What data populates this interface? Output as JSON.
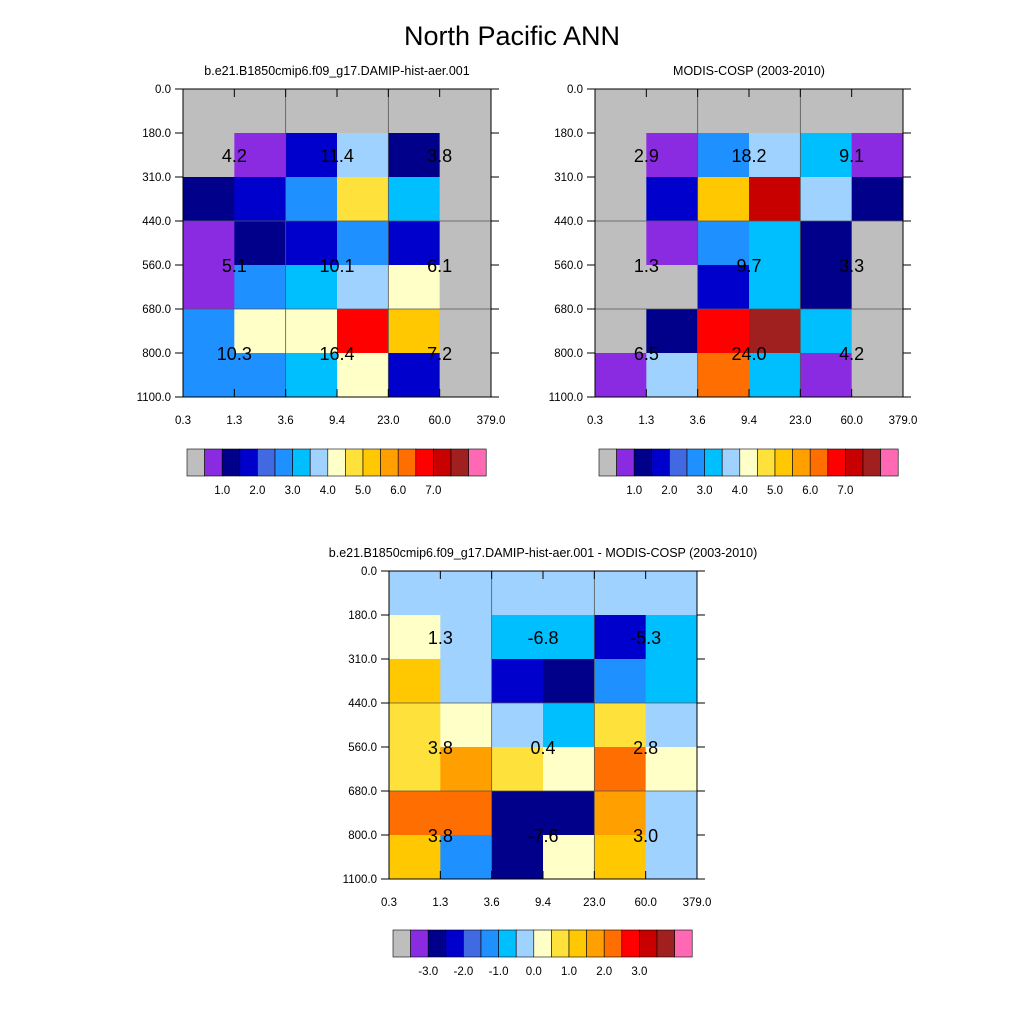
{
  "title": "North Pacific ANN",
  "chart_data": [
    {
      "type": "heatmap",
      "title": "b.e21.B1850cmip6.f09_g17.DAMIP-hist-aer.001",
      "x_ticks": [
        "0.3",
        "1.3",
        "3.6",
        "9.4",
        "23.0",
        "60.0",
        "379.0"
      ],
      "y_ticks": [
        "0.0",
        "180.0",
        "310.0",
        "440.0",
        "560.0",
        "680.0",
        "800.0",
        "1100.0"
      ],
      "cells": [
        [
          -1,
          -1,
          -1,
          -1,
          -1,
          -1,
          -1
        ],
        [
          -1,
          0.5,
          1.5,
          3.5,
          1.0,
          -1,
          -1
        ],
        [
          1.0,
          1.5,
          2.5,
          4.5,
          3.0,
          -1,
          -1
        ],
        [
          0.5,
          1.0,
          1.5,
          2.5,
          1.5,
          -1,
          -1
        ],
        [
          0.5,
          2.5,
          3.0,
          3.5,
          4.0,
          -1,
          -1
        ],
        [
          2.5,
          4.0,
          4.0,
          6.5,
          5.0,
          -1,
          -1
        ],
        [
          2.5,
          2.5,
          3.0,
          4.0,
          1.5,
          -1,
          -1
        ]
      ],
      "annotations": [
        {
          "text": "4.2",
          "x": 1,
          "y": 1.5
        },
        {
          "text": "11.4",
          "x": 3,
          "y": 1.5
        },
        {
          "text": "3.8",
          "x": 5,
          "y": 1.5
        },
        {
          "text": "5.1",
          "x": 1,
          "y": 4
        },
        {
          "text": "10.1",
          "x": 3,
          "y": 4
        },
        {
          "text": "6.1",
          "x": 5,
          "y": 4
        },
        {
          "text": "10.3",
          "x": 1,
          "y": 6
        },
        {
          "text": "16.4",
          "x": 3,
          "y": 6
        },
        {
          "text": "7.2",
          "x": 5,
          "y": 6
        }
      ],
      "colorbar": {
        "labels": [
          "1.0",
          "2.0",
          "3.0",
          "4.0",
          "5.0",
          "6.0",
          "7.0"
        ]
      }
    },
    {
      "type": "heatmap",
      "title": "MODIS-COSP (2003-2010)",
      "x_ticks": [
        "0.3",
        "1.3",
        "3.6",
        "9.4",
        "23.0",
        "60.0",
        "379.0"
      ],
      "y_ticks": [
        "0.0",
        "180.0",
        "310.0",
        "440.0",
        "560.0",
        "680.0",
        "800.0",
        "1100.0"
      ],
      "cells": [
        [
          -1,
          -1,
          -1,
          -1,
          -1,
          -1,
          -1
        ],
        [
          -1,
          0.5,
          2.5,
          3.5,
          3.0,
          0.5,
          -1
        ],
        [
          -1,
          1.5,
          5.0,
          7.0,
          3.5,
          1.0,
          -1
        ],
        [
          -1,
          0.5,
          2.5,
          3.0,
          1.0,
          -1,
          -1
        ],
        [
          -1,
          -1,
          1.5,
          3.0,
          1.0,
          -1,
          -1
        ],
        [
          -1,
          1.0,
          6.5,
          8.0,
          3.0,
          -1,
          -1
        ],
        [
          0.5,
          3.5,
          6.0,
          3.0,
          0.5,
          -1,
          -1
        ]
      ],
      "annotations": [
        {
          "text": "2.9",
          "x": 1,
          "y": 1.5
        },
        {
          "text": "18.2",
          "x": 3,
          "y": 1.5
        },
        {
          "text": "9.1",
          "x": 5,
          "y": 1.5
        },
        {
          "text": "1.3",
          "x": 1,
          "y": 4
        },
        {
          "text": "9.7",
          "x": 3,
          "y": 4
        },
        {
          "text": "3.3",
          "x": 5,
          "y": 4
        },
        {
          "text": "6.5",
          "x": 1,
          "y": 6
        },
        {
          "text": "24.0",
          "x": 3,
          "y": 6
        },
        {
          "text": "4.2",
          "x": 5,
          "y": 6
        }
      ],
      "colorbar": {
        "labels": [
          "1.0",
          "2.0",
          "3.0",
          "4.0",
          "5.0",
          "6.0",
          "7.0"
        ]
      }
    },
    {
      "type": "heatmap",
      "title": "b.e21.B1850cmip6.f09_g17.DAMIP-hist-aer.001 - MODIS-COSP (2003-2010)",
      "x_ticks": [
        "0.3",
        "1.3",
        "3.6",
        "9.4",
        "23.0",
        "60.0",
        "379.0"
      ],
      "y_ticks": [
        "0.0",
        "180.0",
        "310.0",
        "440.0",
        "560.0",
        "680.0",
        "800.0",
        "1100.0"
      ],
      "cells": [
        [
          -0.25,
          -0.25,
          -0.25,
          -0.25,
          -0.25,
          -0.25,
          -0.25
        ],
        [
          0.25,
          -0.25,
          -0.75,
          -0.75,
          -2.25,
          -0.75,
          -0.75
        ],
        [
          1.25,
          -0.25,
          -2.25,
          -2.75,
          -1.25,
          -0.75,
          -0.75
        ],
        [
          0.75,
          0.25,
          -0.25,
          -0.75,
          0.75,
          -0.25,
          -0.25
        ],
        [
          0.75,
          1.75,
          0.75,
          0.25,
          2.25,
          0.25,
          0.25
        ],
        [
          2.25,
          2.25,
          -2.75,
          -2.75,
          1.75,
          -0.25,
          -0.25
        ],
        [
          1.25,
          -1.25,
          -2.75,
          0.25,
          1.25,
          -0.25,
          -0.25
        ]
      ],
      "annotations": [
        {
          "text": "1.3",
          "x": 1,
          "y": 1.5
        },
        {
          "text": "-6.8",
          "x": 3,
          "y": 1.5
        },
        {
          "text": "-5.3",
          "x": 5,
          "y": 1.5
        },
        {
          "text": "3.8",
          "x": 1,
          "y": 4
        },
        {
          "text": "0.4",
          "x": 3,
          "y": 4
        },
        {
          "text": "2.8",
          "x": 5,
          "y": 4
        },
        {
          "text": "3.8",
          "x": 1,
          "y": 6
        },
        {
          "text": "-7.6",
          "x": 3,
          "y": 6
        },
        {
          "text": "3.0",
          "x": 5,
          "y": 6
        }
      ],
      "colorbar": {
        "labels": [
          "-3.0",
          "-2.0",
          "-1.0",
          "0.0",
          "1.0",
          "2.0",
          "3.0"
        ]
      }
    }
  ],
  "palette": [
    "#bebebe",
    "#8a2be2",
    "#00008b",
    "#0000cd",
    "#4169e1",
    "#1e90ff",
    "#00bfff",
    "#a0d2ff",
    "#ffffc8",
    "#ffe13c",
    "#ffc800",
    "#ffa000",
    "#ff6e00",
    "#ff0000",
    "#c80000",
    "#a02020",
    "#ff69b4"
  ],
  "levels_abs": [
    0.5,
    1.0,
    1.5,
    2.0,
    2.5,
    3.0,
    3.5,
    4.0,
    4.5,
    5.0,
    5.5,
    6.0,
    6.5,
    7.0,
    7.5
  ],
  "levels_diff": [
    -3.5,
    -3.0,
    -2.5,
    -2.0,
    -1.5,
    -1.0,
    -0.5,
    0.0,
    0.5,
    1.0,
    1.5,
    2.0,
    2.5,
    3.0,
    3.5
  ]
}
